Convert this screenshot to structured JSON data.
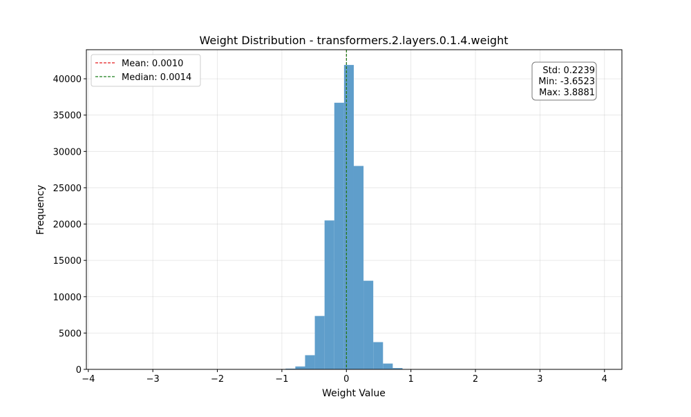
{
  "chart_data": {
    "type": "bar",
    "title": "Weight Distribution - transformers.2.layers.0.1.4.weight",
    "xlabel": "Weight Value",
    "ylabel": "Frequency",
    "xlim": [
      -4.03,
      4.27
    ],
    "ylim": [
      0,
      44000
    ],
    "grid": true,
    "legend_placement": "top-left",
    "x_ticks": [
      -4,
      -3,
      -2,
      -1,
      0,
      1,
      2,
      3,
      4
    ],
    "x_tick_labels": [
      "−4",
      "−3",
      "−2",
      "−1",
      "0",
      "1",
      "2",
      "3",
      "4"
    ],
    "y_ticks": [
      0,
      5000,
      10000,
      15000,
      20000,
      25000,
      30000,
      35000,
      40000
    ],
    "y_tick_labels": [
      "0",
      "5000",
      "10000",
      "15000",
      "20000",
      "25000",
      "30000",
      "35000",
      "40000"
    ],
    "bar_color": "#5f9ecb",
    "series": [
      {
        "bins": [
          {
            "x0": -0.9425,
            "x1": -0.7915,
            "value": 100
          },
          {
            "x0": -0.7915,
            "x1": -0.6405,
            "value": 400
          },
          {
            "x0": -0.6405,
            "x1": -0.4895,
            "value": 1950
          },
          {
            "x0": -0.4895,
            "x1": -0.3385,
            "value": 7350
          },
          {
            "x0": -0.3385,
            "x1": -0.1875,
            "value": 20500
          },
          {
            "x0": -0.1875,
            "x1": -0.0365,
            "value": 36700
          },
          {
            "x0": -0.0365,
            "x1": 0.1145,
            "value": 41900
          },
          {
            "x0": 0.1145,
            "x1": 0.2655,
            "value": 28000
          },
          {
            "x0": 0.2655,
            "x1": 0.4165,
            "value": 12200
          },
          {
            "x0": 0.4165,
            "x1": 0.5675,
            "value": 3750
          },
          {
            "x0": 0.5675,
            "x1": 0.7185,
            "value": 800
          },
          {
            "x0": 0.7185,
            "x1": 0.8695,
            "value": 180
          }
        ]
      }
    ],
    "lines": [
      {
        "label": "Mean: 0.0010",
        "x": 0.001,
        "color": "#e31a1c",
        "style": "dashed"
      },
      {
        "label": "Median: 0.0014",
        "x": 0.0014,
        "color": "#1a7f1a",
        "style": "dashed"
      }
    ],
    "stats_box": {
      "lines": [
        "Std: 0.2239",
        "Min: -3.6523",
        "Max: 3.8881"
      ]
    }
  }
}
